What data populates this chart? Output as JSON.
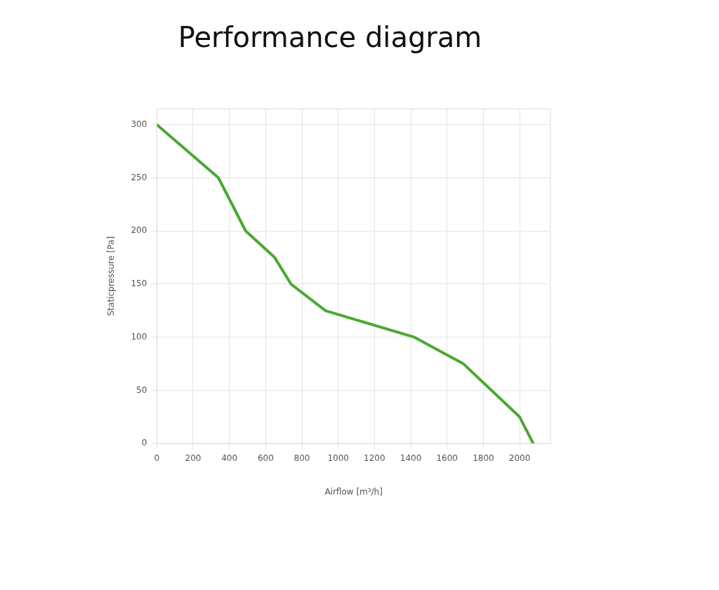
{
  "chart_data": {
    "type": "line",
    "title": "Performance diagram",
    "xlabel": "Airflow [m³/h]",
    "ylabel": "Staticpressure [Pa]",
    "x": [
      0,
      340,
      490,
      650,
      740,
      930,
      1420,
      1690,
      2000,
      2075
    ],
    "series": [
      {
        "color": "#4aa832",
        "values": [
          300,
          250,
          200,
          175,
          150,
          125,
          100,
          75,
          25,
          0
        ]
      }
    ],
    "xlim": [
      0,
      2170
    ],
    "xticks": [
      0,
      200,
      400,
      600,
      800,
      1000,
      1200,
      1400,
      1600,
      1800,
      2000
    ],
    "ylim": [
      0,
      315
    ],
    "yticks": [
      0,
      50,
      100,
      150,
      200,
      250,
      300
    ],
    "grid": true,
    "legend": false,
    "marker": "none",
    "line_style": "solid"
  }
}
